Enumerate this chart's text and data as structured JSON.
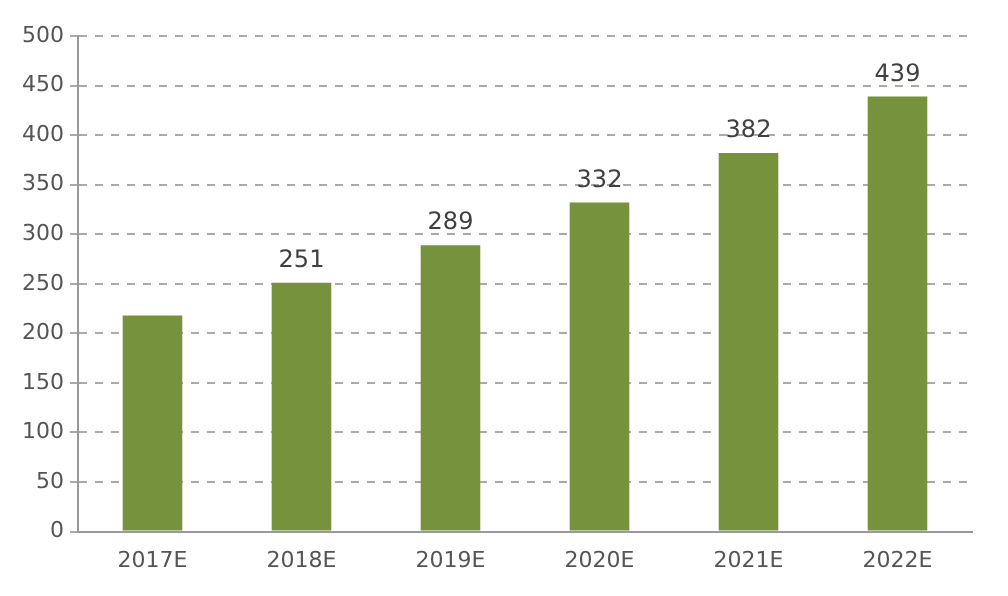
{
  "chart_data": {
    "type": "bar",
    "categories": [
      "2017E",
      "2018E",
      "2019E",
      "2020E",
      "2021E",
      "2022E"
    ],
    "values": [
      218,
      251,
      289,
      332,
      382,
      439
    ],
    "value_labels": [
      null,
      "251",
      "289",
      "332",
      "382",
      "439"
    ],
    "color": "#76923c",
    "ylim": [
      0,
      500
    ],
    "yticks": [
      0,
      50,
      100,
      150,
      200,
      250,
      300,
      350,
      400,
      450,
      500
    ],
    "grid": "y",
    "legend": false
  }
}
